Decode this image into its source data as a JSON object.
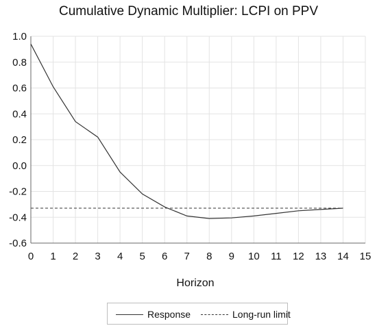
{
  "chart_data": {
    "type": "line",
    "title": "Cumulative Dynamic Multiplier: LCPI on PPV",
    "xlabel": "Horizon",
    "ylabel": "",
    "xlim": [
      0,
      15
    ],
    "ylim": [
      -0.6,
      1.0
    ],
    "xticks": [
      "0",
      "1",
      "2",
      "3",
      "4",
      "5",
      "6",
      "7",
      "8",
      "9",
      "10",
      "11",
      "12",
      "13",
      "14",
      "15"
    ],
    "yticks": [
      "1.0",
      "0.8",
      "0.6",
      "0.4",
      "0.2",
      "0.0",
      "-0.2",
      "-0.4",
      "-0.6"
    ],
    "grid": true,
    "legend_position": "bottom",
    "x": [
      0,
      1,
      2,
      3,
      4,
      5,
      6,
      7,
      8,
      9,
      10,
      11,
      12,
      13,
      14
    ],
    "series": [
      {
        "name": "Response",
        "style": "solid",
        "values": [
          0.94,
          0.61,
          0.34,
          0.22,
          -0.05,
          -0.22,
          -0.32,
          -0.39,
          -0.41,
          -0.405,
          -0.39,
          -0.37,
          -0.35,
          -0.34,
          -0.33
        ]
      },
      {
        "name": "Long-run limit",
        "style": "dashed",
        "constant": -0.33
      }
    ]
  },
  "colors": {
    "line": "#333333",
    "grid": "#e3e3e3",
    "axis": "#666666"
  }
}
